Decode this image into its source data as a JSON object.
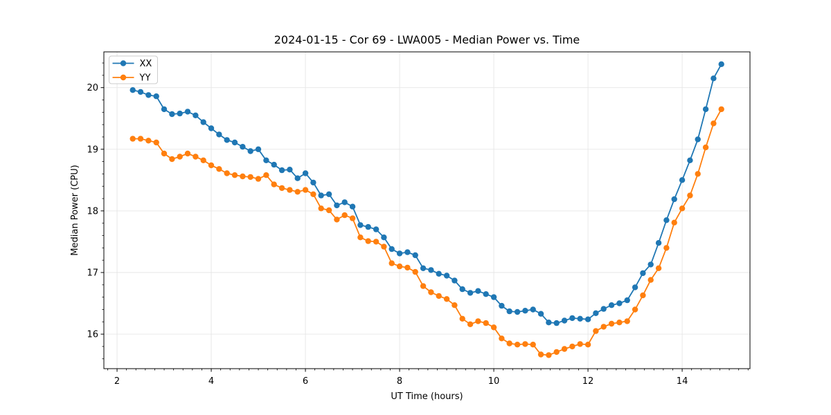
{
  "figure": {
    "background": "#ffffff"
  },
  "chart_data": {
    "type": "line",
    "title": "2024-01-15 - Cor 69 - LWA005 - Median Power vs. Time",
    "xlabel": "UT Time (hours)",
    "ylabel": "Median Power (CPU)",
    "xlim": [
      1.72,
      15.44
    ],
    "ylim": [
      15.44,
      20.58
    ],
    "xticks": [
      2,
      4,
      6,
      8,
      10,
      12,
      14
    ],
    "yticks": [
      16,
      17,
      18,
      19,
      20
    ],
    "minor_tick_step_x": 0.2,
    "minor_tick_step_y": 0.2,
    "grid": true,
    "grid_color": "#e6e6e6",
    "spine_color": "#000000",
    "text_color": "#000000",
    "legend_position": "upper-left",
    "x": [
      2.333,
      2.5,
      2.667,
      2.833,
      3,
      3.167,
      3.333,
      3.5,
      3.667,
      3.833,
      4,
      4.167,
      4.333,
      4.5,
      4.667,
      4.833,
      5,
      5.167,
      5.333,
      5.5,
      5.667,
      5.833,
      6,
      6.167,
      6.333,
      6.5,
      6.667,
      6.833,
      7,
      7.167,
      7.333,
      7.5,
      7.667,
      7.833,
      8,
      8.167,
      8.333,
      8.5,
      8.667,
      8.833,
      9,
      9.167,
      9.333,
      9.5,
      9.667,
      9.833,
      10,
      10.167,
      10.333,
      10.5,
      10.667,
      10.833,
      11,
      11.167,
      11.333,
      11.5,
      11.667,
      11.833,
      12,
      12.167,
      12.333,
      12.5,
      12.667,
      12.833,
      13,
      13.167,
      13.333,
      13.5,
      13.667,
      13.833,
      14,
      14.167,
      14.333,
      14.5,
      14.667,
      14.833
    ],
    "series": [
      {
        "name": "XX",
        "color": "#1f77b4",
        "marker": "circle",
        "values": [
          19.96,
          19.93,
          19.88,
          19.86,
          19.65,
          19.57,
          19.58,
          19.61,
          19.55,
          19.44,
          19.34,
          19.24,
          19.15,
          19.11,
          19.04,
          18.97,
          19.0,
          18.82,
          18.75,
          18.66,
          18.67,
          18.53,
          18.61,
          18.46,
          18.25,
          18.27,
          18.09,
          18.14,
          18.07,
          17.77,
          17.74,
          17.7,
          17.57,
          17.38,
          17.31,
          17.33,
          17.28,
          17.07,
          17.04,
          16.98,
          16.95,
          16.87,
          16.73,
          16.67,
          16.7,
          16.65,
          16.6,
          16.46,
          16.37,
          16.36,
          16.38,
          16.4,
          16.33,
          16.19,
          16.18,
          16.22,
          16.26,
          16.25,
          16.24,
          16.34,
          16.41,
          16.47,
          16.5,
          16.55,
          16.76,
          16.99,
          17.13,
          17.48,
          17.85,
          18.19,
          18.5,
          18.82,
          19.16,
          19.65,
          20.15,
          20.38
        ]
      },
      {
        "name": "YY",
        "color": "#ff7f0e",
        "marker": "circle",
        "values": [
          19.17,
          19.17,
          19.14,
          19.11,
          18.93,
          18.84,
          18.88,
          18.93,
          18.88,
          18.82,
          18.74,
          18.68,
          18.61,
          18.58,
          18.56,
          18.55,
          18.52,
          18.58,
          18.43,
          18.37,
          18.34,
          18.31,
          18.34,
          18.27,
          18.04,
          18.01,
          17.86,
          17.93,
          17.88,
          17.57,
          17.51,
          17.5,
          17.42,
          17.15,
          17.1,
          17.08,
          17.01,
          16.78,
          16.68,
          16.62,
          16.57,
          16.47,
          16.25,
          16.16,
          16.21,
          16.18,
          16.11,
          15.93,
          15.85,
          15.83,
          15.84,
          15.83,
          15.67,
          15.66,
          15.71,
          15.76,
          15.8,
          15.84,
          15.83,
          16.05,
          16.12,
          16.17,
          16.19,
          16.21,
          16.4,
          16.63,
          16.88,
          17.07,
          17.4,
          17.81,
          18.04,
          18.25,
          18.6,
          19.03,
          19.42,
          19.65
        ]
      }
    ]
  }
}
